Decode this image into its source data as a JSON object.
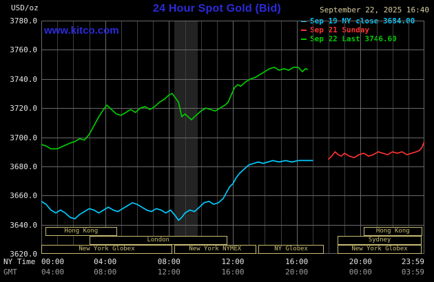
{
  "header": {
    "title": "24 Hour Spot Gold (Bid)",
    "datetime": "September 22, 2025 16:40",
    "unit_label": "USD/oz",
    "watermark": "www.kitco.com"
  },
  "colors": {
    "brand_blue": "#2b2bdc",
    "date_tan": "#d6cda0",
    "session_tan": "#c9bd72",
    "series_prev_close": "#00ccff",
    "series_sunday": "#ff3333",
    "series_today": "#00cc00"
  },
  "legend": {
    "items": [
      {
        "label": "Sep 19 NY close 3684.00",
        "color": "#00ccff"
      },
      {
        "label": "Sep 21 Sunday",
        "color": "#ff3333"
      },
      {
        "label": "Sep 22 Last 3746.60",
        "color": "#00cc00"
      }
    ]
  },
  "sessions": {
    "color": "#c9bd72",
    "rows": [
      [
        {
          "label": "Hong Kong",
          "start": 0.25,
          "end": 4.75
        },
        {
          "label": "Hong Kong",
          "start": 20.2,
          "end": 23.85
        }
      ],
      [
        {
          "label": "London",
          "start": 3.0,
          "end": 11.65
        },
        {
          "label": "Sydney",
          "start": 18.55,
          "end": 23.85
        }
      ],
      [
        {
          "label": "New York Globex",
          "start": 0,
          "end": 8.2
        },
        {
          "label": "New York NYMEX",
          "start": 8.33,
          "end": 13.45
        },
        {
          "label": "NY Globex",
          "start": 13.6,
          "end": 17.7
        },
        {
          "label": "New York Globex",
          "start": 18.55,
          "end": 23.85
        }
      ]
    ]
  },
  "chart_data": {
    "type": "line",
    "title": "24 Hour Spot Gold (Bid)",
    "ylabel": "USD/oz",
    "ylim": [
      3620,
      3780
    ],
    "y_tick_step": 20,
    "y_ticks": [
      "3780.0",
      "3760.0",
      "3740.0",
      "3720.0",
      "3700.0",
      "3680.0",
      "3660.0",
      "3640.0",
      "3620.0"
    ],
    "x_hours": 24,
    "grid": true,
    "legend_position": "top-right",
    "shaded_band": {
      "start": 8.33,
      "end": 9.8
    },
    "x_axis": {
      "ny_label": "NY Time",
      "gmt_label": "GMT",
      "ticks": [
        {
          "t": 0,
          "ny": "00:00",
          "gmt": "04:00"
        },
        {
          "t": 4,
          "ny": "04:00",
          "gmt": "08:00"
        },
        {
          "t": 8,
          "ny": "08:00",
          "gmt": "12:00"
        },
        {
          "t": 12,
          "ny": "12:00",
          "gmt": "16:00"
        },
        {
          "t": 16,
          "ny": "16:00",
          "gmt": "20:00"
        },
        {
          "t": 20,
          "ny": "20:00",
          "gmt": "00:00"
        },
        {
          "t": 23.98,
          "ny": "23:59",
          "gmt": "03:59"
        }
      ]
    },
    "series": [
      {
        "id": "sep19",
        "name": "Sep 19 NY close",
        "close": 3684.0,
        "color": "#00ccff",
        "points": [
          [
            0,
            3656
          ],
          [
            0.3,
            3654
          ],
          [
            0.6,
            3650
          ],
          [
            0.9,
            3648
          ],
          [
            1.2,
            3650
          ],
          [
            1.5,
            3648
          ],
          [
            1.8,
            3645
          ],
          [
            2.1,
            3644
          ],
          [
            2.4,
            3647
          ],
          [
            2.7,
            3649
          ],
          [
            3,
            3651
          ],
          [
            3.3,
            3650
          ],
          [
            3.6,
            3648
          ],
          [
            3.9,
            3650
          ],
          [
            4.2,
            3652
          ],
          [
            4.5,
            3650
          ],
          [
            4.8,
            3649
          ],
          [
            5.1,
            3651
          ],
          [
            5.4,
            3653
          ],
          [
            5.7,
            3655
          ],
          [
            6,
            3654
          ],
          [
            6.3,
            3652
          ],
          [
            6.6,
            3650
          ],
          [
            6.9,
            3649
          ],
          [
            7.2,
            3651
          ],
          [
            7.5,
            3650
          ],
          [
            7.8,
            3648
          ],
          [
            8.1,
            3650
          ],
          [
            8.4,
            3646
          ],
          [
            8.6,
            3643
          ],
          [
            8.8,
            3645
          ],
          [
            9,
            3648
          ],
          [
            9.3,
            3650
          ],
          [
            9.6,
            3649
          ],
          [
            9.9,
            3652
          ],
          [
            10.2,
            3655
          ],
          [
            10.5,
            3656
          ],
          [
            10.8,
            3654
          ],
          [
            11.1,
            3655
          ],
          [
            11.4,
            3658
          ],
          [
            11.6,
            3662
          ],
          [
            11.8,
            3666
          ],
          [
            12,
            3668
          ],
          [
            12.2,
            3672
          ],
          [
            12.4,
            3675
          ],
          [
            12.7,
            3678
          ],
          [
            13,
            3681
          ],
          [
            13.3,
            3682
          ],
          [
            13.6,
            3683
          ],
          [
            13.9,
            3682
          ],
          [
            14.2,
            3683
          ],
          [
            14.5,
            3684
          ],
          [
            14.9,
            3683
          ],
          [
            15.3,
            3684
          ],
          [
            15.7,
            3683
          ],
          [
            16.1,
            3684
          ],
          [
            16.5,
            3684
          ],
          [
            17,
            3684
          ]
        ]
      },
      {
        "id": "sep21",
        "name": "Sep 21 Sunday",
        "color": "#ff3333",
        "points": [
          [
            18,
            3685
          ],
          [
            18.2,
            3687
          ],
          [
            18.4,
            3690
          ],
          [
            18.6,
            3688
          ],
          [
            18.8,
            3687
          ],
          [
            19,
            3689
          ],
          [
            19.3,
            3687
          ],
          [
            19.6,
            3686
          ],
          [
            19.9,
            3688
          ],
          [
            20.2,
            3689
          ],
          [
            20.5,
            3687
          ],
          [
            20.8,
            3688
          ],
          [
            21.1,
            3690
          ],
          [
            21.4,
            3689
          ],
          [
            21.7,
            3688
          ],
          [
            22,
            3690
          ],
          [
            22.3,
            3689
          ],
          [
            22.6,
            3690
          ],
          [
            22.9,
            3688
          ],
          [
            23.2,
            3689
          ],
          [
            23.5,
            3690
          ],
          [
            23.7,
            3691
          ],
          [
            23.85,
            3693
          ],
          [
            24,
            3697
          ]
        ]
      },
      {
        "id": "sep22",
        "name": "Sep 22",
        "last": 3746.6,
        "color": "#00cc00",
        "points": [
          [
            0,
            3695
          ],
          [
            0.3,
            3694
          ],
          [
            0.6,
            3692
          ],
          [
            1,
            3692
          ],
          [
            1.4,
            3694
          ],
          [
            1.8,
            3696
          ],
          [
            2.1,
            3697
          ],
          [
            2.4,
            3699
          ],
          [
            2.7,
            3698
          ],
          [
            3,
            3702
          ],
          [
            3.3,
            3708
          ],
          [
            3.6,
            3714
          ],
          [
            3.9,
            3719
          ],
          [
            4.1,
            3722
          ],
          [
            4.4,
            3719
          ],
          [
            4.7,
            3716
          ],
          [
            5,
            3715
          ],
          [
            5.3,
            3717
          ],
          [
            5.6,
            3719
          ],
          [
            5.9,
            3717
          ],
          [
            6.2,
            3720
          ],
          [
            6.5,
            3721
          ],
          [
            6.8,
            3719
          ],
          [
            7.1,
            3721
          ],
          [
            7.4,
            3724
          ],
          [
            7.7,
            3726
          ],
          [
            8,
            3729
          ],
          [
            8.2,
            3730
          ],
          [
            8.4,
            3727
          ],
          [
            8.6,
            3724
          ],
          [
            8.8,
            3714
          ],
          [
            9,
            3716
          ],
          [
            9.2,
            3714
          ],
          [
            9.4,
            3712
          ],
          [
            9.6,
            3714
          ],
          [
            9.8,
            3716
          ],
          [
            10,
            3718
          ],
          [
            10.3,
            3720
          ],
          [
            10.6,
            3719
          ],
          [
            10.9,
            3718
          ],
          [
            11.2,
            3720
          ],
          [
            11.5,
            3722
          ],
          [
            11.7,
            3724
          ],
          [
            11.9,
            3729
          ],
          [
            12.1,
            3734
          ],
          [
            12.3,
            3736
          ],
          [
            12.5,
            3735
          ],
          [
            12.8,
            3738
          ],
          [
            13.1,
            3740
          ],
          [
            13.4,
            3741
          ],
          [
            13.7,
            3743
          ],
          [
            14,
            3745
          ],
          [
            14.3,
            3747
          ],
          [
            14.6,
            3748
          ],
          [
            14.9,
            3746
          ],
          [
            15.2,
            3747
          ],
          [
            15.5,
            3746
          ],
          [
            15.8,
            3748
          ],
          [
            16.1,
            3748
          ],
          [
            16.35,
            3745
          ],
          [
            16.55,
            3747
          ],
          [
            16.67,
            3746.6
          ]
        ]
      }
    ]
  }
}
